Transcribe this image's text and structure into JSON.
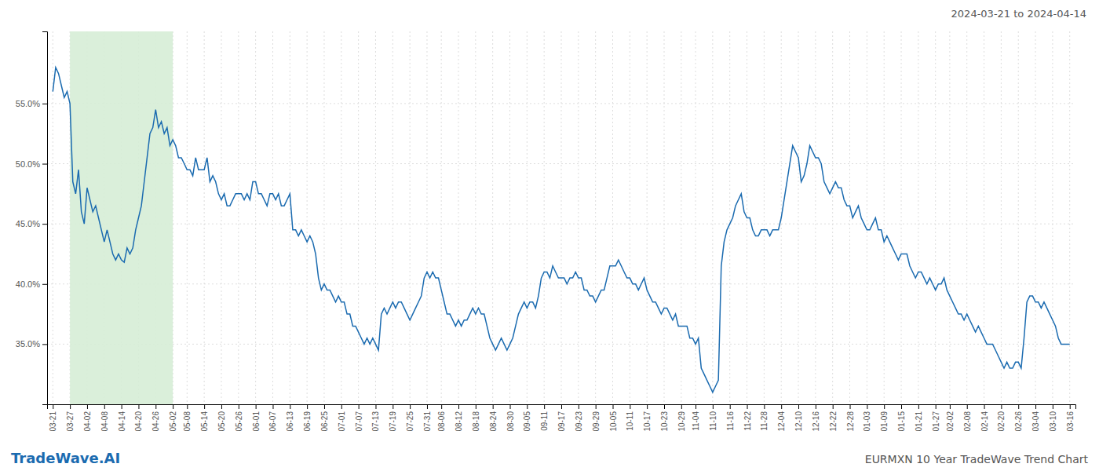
{
  "chart_data": {
    "type": "line",
    "title": "EURMXN 10 Year TradeWave Trend Chart",
    "subtitle": "2024-03-21 to 2024-04-14",
    "annotations": [
      "TradeWave.AI"
    ],
    "color": "#1b6bb0",
    "highlight": {
      "from": "03-27",
      "to": "05-02",
      "color": "#d6edd6"
    },
    "ylim": [
      30.0,
      61.0
    ],
    "yticks": [
      {
        "value": 35.0,
        "label": "35.0%"
      },
      {
        "value": 40.0,
        "label": "40.0%"
      },
      {
        "value": 45.0,
        "label": "45.0%"
      },
      {
        "value": 50.0,
        "label": "50.0%"
      },
      {
        "value": 55.0,
        "label": "55.0%"
      }
    ],
    "grid": true,
    "categories": [
      "03-21",
      null,
      null,
      null,
      null,
      null,
      "03-27",
      null,
      null,
      null,
      null,
      null,
      "04-02",
      null,
      null,
      null,
      null,
      null,
      "04-08",
      null,
      null,
      null,
      null,
      null,
      "04-14",
      null,
      null,
      null,
      null,
      null,
      "04-20",
      null,
      null,
      null,
      null,
      null,
      "04-26",
      null,
      null,
      null,
      null,
      null,
      "05-02",
      null,
      null,
      null,
      null,
      "05-08",
      null,
      null,
      null,
      null,
      null,
      "05-14",
      null,
      null,
      null,
      null,
      null,
      "05-20",
      null,
      null,
      null,
      null,
      null,
      "05-26",
      null,
      null,
      null,
      null,
      null,
      "06-01",
      null,
      null,
      null,
      null,
      null,
      "06-07",
      null,
      null,
      null,
      null,
      null,
      "06-13",
      null,
      null,
      null,
      null,
      null,
      "06-19",
      null,
      null,
      null,
      null,
      null,
      "06-25",
      null,
      null,
      null,
      null,
      null,
      "07-01",
      null,
      null,
      null,
      null,
      null,
      "07-07",
      null,
      null,
      null,
      null,
      null,
      "07-13",
      null,
      null,
      null,
      null,
      null,
      "07-19",
      null,
      null,
      null,
      null,
      null,
      "07-25",
      null,
      null,
      null,
      null,
      null,
      "07-31",
      null,
      null,
      null,
      null,
      "08-06",
      null,
      null,
      null,
      null,
      null,
      "08-12",
      null,
      null,
      null,
      null,
      null,
      "08-18",
      null,
      null,
      null,
      null,
      null,
      "08-24",
      null,
      null,
      null,
      null,
      null,
      "08-30",
      null,
      null,
      null,
      null,
      null,
      "09-05",
      null,
      null,
      null,
      null,
      null,
      "09-11",
      null,
      null,
      null,
      null,
      null,
      "09-17",
      null,
      null,
      null,
      null,
      null,
      "09-23",
      null,
      null,
      null,
      null,
      null,
      "09-29",
      null,
      null,
      null,
      null,
      null,
      "10-05",
      null,
      null,
      null,
      null,
      null,
      "10-11",
      null,
      null,
      null,
      null,
      null,
      "10-17",
      null,
      null,
      null,
      null,
      null,
      "10-23",
      null,
      null,
      null,
      null,
      null,
      "10-29",
      null,
      null,
      null,
      null,
      "11-04",
      null,
      null,
      null,
      null,
      null,
      "11-10",
      null,
      null,
      null,
      null,
      null,
      "11-16",
      null,
      null,
      null,
      null,
      null,
      "11-22",
      null,
      null,
      null,
      null,
      null,
      "11-28",
      null,
      null,
      null,
      null,
      null,
      "12-04",
      null,
      null,
      null,
      null,
      null,
      "12-10",
      null,
      null,
      null,
      null,
      null,
      "12-16",
      null,
      null,
      null,
      null,
      null,
      "12-22",
      null,
      null,
      null,
      null,
      null,
      "12-28",
      null,
      null,
      null,
      null,
      null,
      "01-03",
      null,
      null,
      null,
      null,
      null,
      "01-09",
      null,
      null,
      null,
      null,
      null,
      "01-15",
      null,
      null,
      null,
      null,
      null,
      "01-21",
      null,
      null,
      null,
      null,
      null,
      "01-27",
      null,
      null,
      null,
      null,
      "02-02",
      null,
      null,
      null,
      null,
      null,
      "02-08",
      null,
      null,
      null,
      null,
      null,
      "02-14",
      null,
      null,
      null,
      null,
      null,
      "02-20",
      null,
      null,
      null,
      null,
      null,
      "02-26",
      null,
      null,
      null,
      null,
      null,
      "03-04",
      null,
      null,
      null,
      null,
      null,
      "03-10",
      null,
      null,
      null,
      null,
      null,
      "03-16"
    ],
    "values": [
      56.0,
      58.0,
      57.5,
      56.5,
      55.5,
      56.0,
      55.0,
      48.5,
      47.5,
      49.5,
      46.0,
      45.0,
      48.0,
      47.0,
      46.0,
      46.5,
      45.5,
      44.5,
      43.5,
      44.5,
      43.5,
      42.5,
      42.0,
      42.5,
      42.0,
      41.8,
      43.0,
      42.5,
      43.0,
      44.5,
      45.5,
      46.5,
      48.5,
      50.5,
      52.5,
      53.0,
      54.5,
      53.0,
      53.5,
      52.5,
      53.0,
      51.5,
      52.0,
      51.5,
      50.5,
      50.5,
      50.0,
      49.5,
      49.5,
      49.0,
      50.5,
      49.5,
      49.5,
      49.5,
      50.5,
      48.5,
      49.0,
      48.5,
      47.5,
      47.0,
      47.5,
      46.5,
      46.5,
      47.0,
      47.5,
      47.5,
      47.5,
      47.0,
      47.5,
      47.0,
      48.5,
      48.5,
      47.5,
      47.5,
      47.0,
      46.5,
      47.5,
      47.5,
      47.0,
      47.5,
      46.5,
      46.5,
      47.0,
      47.5,
      44.5,
      44.5,
      44.0,
      44.5,
      44.0,
      43.5,
      44.0,
      43.5,
      42.5,
      40.5,
      39.5,
      40.0,
      39.5,
      39.5,
      39.0,
      38.5,
      39.0,
      38.5,
      38.5,
      37.5,
      37.5,
      36.5,
      36.5,
      36.0,
      35.5,
      35.0,
      35.5,
      35.0,
      35.5,
      35.0,
      34.5,
      37.5,
      38.0,
      37.5,
      38.0,
      38.5,
      38.0,
      38.5,
      38.5,
      38.0,
      37.5,
      37.0,
      37.5,
      38.0,
      38.5,
      39.0,
      40.5,
      41.0,
      40.5,
      41.0,
      40.5,
      40.5,
      39.5,
      38.5,
      37.5,
      37.5,
      37.0,
      36.5,
      37.0,
      36.5,
      37.0,
      37.0,
      37.5,
      38.0,
      37.5,
      38.0,
      37.5,
      37.5,
      36.5,
      35.5,
      35.0,
      34.5,
      35.0,
      35.5,
      35.0,
      34.5,
      35.0,
      35.5,
      36.5,
      37.5,
      38.0,
      38.5,
      38.0,
      38.5,
      38.5,
      38.0,
      39.0,
      40.5,
      41.0,
      41.0,
      40.5,
      41.5,
      41.0,
      40.5,
      40.5,
      40.5,
      40.0,
      40.5,
      40.5,
      41.0,
      40.5,
      40.5,
      39.5,
      39.5,
      39.0,
      39.0,
      38.5,
      39.0,
      39.5,
      39.5,
      40.5,
      41.5,
      41.5,
      41.5,
      42.0,
      41.5,
      41.0,
      40.5,
      40.5,
      40.0,
      40.0,
      39.5,
      40.0,
      40.5,
      39.5,
      39.0,
      38.5,
      38.5,
      38.0,
      37.5,
      38.0,
      38.0,
      37.5,
      37.0,
      37.5,
      36.5,
      36.5,
      36.5,
      36.5,
      35.5,
      35.5,
      35.0,
      35.5,
      33.0,
      32.5,
      32.0,
      31.5,
      31.0,
      31.5,
      32.0,
      41.5,
      43.5,
      44.5,
      45.0,
      45.5,
      46.5,
      47.0,
      47.5,
      46.0,
      45.5,
      45.5,
      44.5,
      44.0,
      44.0,
      44.5,
      44.5,
      44.5,
      44.0,
      44.5,
      44.5,
      44.5,
      45.5,
      47.0,
      48.5,
      50.0,
      51.5,
      51.0,
      50.5,
      48.5,
      49.0,
      50.0,
      51.5,
      51.0,
      50.5,
      50.5,
      50.0,
      48.5,
      48.0,
      47.5,
      48.0,
      48.5,
      48.0,
      48.0,
      47.0,
      46.5,
      46.5,
      45.5,
      46.0,
      46.5,
      45.5,
      45.0,
      44.5,
      44.5,
      45.0,
      45.5,
      44.5,
      44.5,
      43.5,
      44.0,
      43.5,
      43.0,
      42.5,
      42.0,
      42.5,
      42.5,
      42.5,
      41.5,
      41.0,
      40.5,
      41.0,
      41.0,
      40.5,
      40.0,
      40.5,
      40.0,
      39.5,
      40.0,
      40.0,
      40.5,
      39.5,
      39.0,
      38.5,
      38.0,
      37.5,
      37.5,
      37.0,
      37.5,
      37.0,
      36.5,
      36.0,
      36.5,
      36.0,
      35.5,
      35.0,
      35.0,
      35.0,
      34.5,
      34.0,
      33.5,
      33.0,
      33.5,
      33.0,
      33.0,
      33.5,
      33.5,
      33.0,
      35.5,
      38.5,
      39.0,
      39.0,
      38.5,
      38.5,
      38.0,
      38.5,
      38.0,
      37.5,
      37.0,
      36.5,
      35.5,
      35.0,
      35.0,
      35.0,
      35.0
    ]
  }
}
